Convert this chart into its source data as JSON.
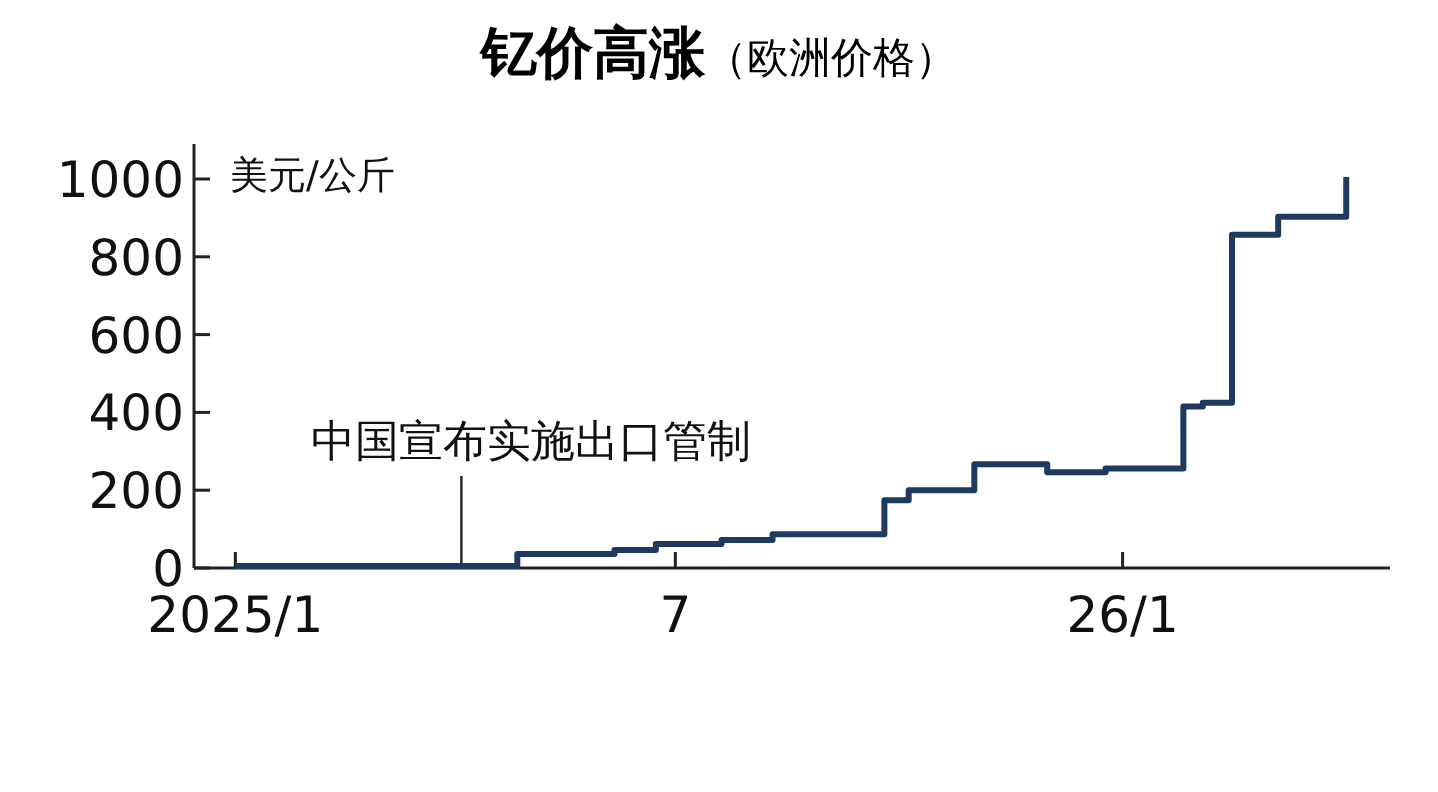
{
  "chart_data": {
    "type": "step",
    "title": "钇价高涨",
    "subtitle": "（欧洲价格）",
    "ylabel": "美元/公斤",
    "ref_lines": [
      {
        "axis": "x",
        "value": "2025-04-04",
        "label": "中国宣布实施出口管制"
      }
    ],
    "x": [
      "2025-01-01",
      "2025-04-27",
      "2025-06-06",
      "2025-06-23",
      "2025-07-20",
      "2025-08-10",
      "2025-09-25",
      "2025-10-05",
      "2025-11-01",
      "2025-12-01",
      "2025-12-25",
      "2026-01-26",
      "2026-02-03",
      "2026-02-15",
      "2026-03-06",
      "2026-04-03"
    ],
    "series": [
      {
        "color": "#1f3a5f",
        "values": [
          5,
          36,
          46,
          62,
          72,
          87,
          174,
          200,
          267,
          246,
          256,
          415,
          425,
          857,
          903,
          1005
        ]
      }
    ],
    "xlim": [
      "2024-12-15",
      "2026-04-21"
    ],
    "ylim": [
      0,
      1090
    ],
    "xticks": [
      {
        "value": "2025-01-01",
        "label": "2025/1"
      },
      {
        "value": "2025-07-01",
        "label": "7"
      },
      {
        "value": "2026-01-01",
        "label": "26/1"
      }
    ],
    "yticks": [
      0,
      200,
      400,
      600,
      800,
      1000
    ]
  }
}
